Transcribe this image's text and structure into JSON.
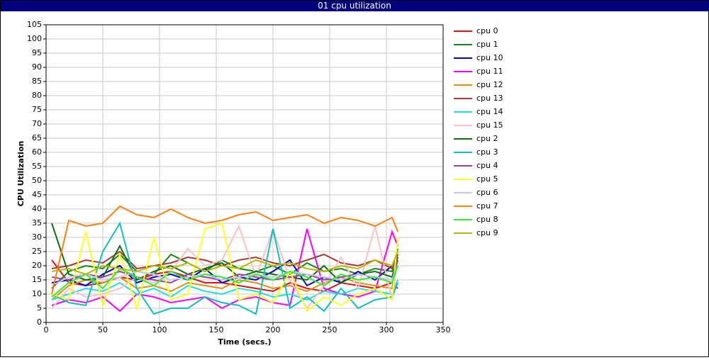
{
  "chart_data": {
    "type": "line",
    "title": "01 cpu utilization",
    "x_label": "Time (secs.)",
    "y_label": "CPU Utilization",
    "x": [
      5,
      20,
      35,
      50,
      65,
      80,
      95,
      110,
      125,
      140,
      155,
      170,
      185,
      200,
      215,
      230,
      245,
      260,
      275,
      290,
      305,
      310
    ],
    "xlim": [
      0,
      350
    ],
    "xticks": [
      0,
      50,
      100,
      150,
      200,
      250,
      300,
      350
    ],
    "ylim": [
      0,
      105
    ],
    "yticks": [
      0,
      5,
      10,
      15,
      20,
      25,
      30,
      35,
      40,
      45,
      50,
      55,
      60,
      65,
      70,
      75,
      80,
      85,
      90,
      95,
      100,
      105
    ],
    "grid": true,
    "series": [
      {
        "name": "cpu 0",
        "color": "#e81010",
        "values": [
          22,
          14,
          13,
          14,
          16,
          15,
          17,
          18,
          16,
          14,
          14,
          13,
          12,
          11,
          14,
          12,
          11,
          14,
          13,
          12,
          14,
          12
        ]
      },
      {
        "name": "cpu 1",
        "color": "#108a10",
        "values": [
          12,
          18,
          20,
          19,
          24,
          18,
          17,
          24,
          21,
          18,
          22,
          19,
          18,
          20,
          17,
          21,
          18,
          19,
          17,
          19,
          18,
          26
        ]
      },
      {
        "name": "cpu 10",
        "color": "#0000d0",
        "values": [
          14,
          15,
          13,
          17,
          20,
          14,
          16,
          17,
          15,
          19,
          14,
          16,
          15,
          18,
          22,
          13,
          16,
          14,
          18,
          15,
          20,
          22
        ]
      },
      {
        "name": "cpu 11",
        "color": "#ff00ff",
        "values": [
          6,
          8,
          7,
          9,
          4,
          10,
          9,
          7,
          8,
          9,
          5,
          8,
          9,
          7,
          6,
          33,
          12,
          10,
          9,
          11,
          32,
          27
        ]
      },
      {
        "name": "cpu 12",
        "color": "#e09010",
        "values": [
          8,
          13,
          15,
          14,
          16,
          12,
          13,
          11,
          14,
          13,
          12,
          15,
          14,
          12,
          13,
          11,
          14,
          16,
          14,
          13,
          12,
          24
        ]
      },
      {
        "name": "cpu 13",
        "color": "#a83a3a",
        "values": [
          19,
          20,
          22,
          21,
          25,
          19,
          20,
          21,
          23,
          22,
          20,
          22,
          23,
          21,
          20,
          22,
          24,
          21,
          20,
          22,
          19,
          24
        ]
      },
      {
        "name": "cpu 14",
        "color": "#20e0e0",
        "values": [
          8,
          10,
          12,
          11,
          14,
          10,
          12,
          9,
          13,
          11,
          10,
          12,
          11,
          9,
          10,
          8,
          11,
          10,
          12,
          11,
          10,
          15
        ]
      },
      {
        "name": "cpu 15",
        "color": "#ffc0c8",
        "values": [
          5,
          12,
          9,
          10,
          12,
          16,
          14,
          18,
          26,
          20,
          22,
          34,
          16,
          33,
          15,
          5,
          13,
          23,
          12,
          34,
          8,
          22
        ]
      },
      {
        "name": "cpu 2",
        "color": "#107010",
        "values": [
          35,
          17,
          15,
          16,
          27,
          15,
          18,
          20,
          17,
          19,
          21,
          16,
          18,
          17,
          16,
          15,
          20,
          14,
          17,
          18,
          16,
          23
        ]
      },
      {
        "name": "cpu 3",
        "color": "#10c0c0",
        "values": [
          10,
          7,
          6,
          25,
          35,
          12,
          3,
          5,
          5,
          9,
          7,
          6,
          3,
          33,
          5,
          9,
          4,
          12,
          5,
          8,
          9,
          14
        ]
      },
      {
        "name": "cpu 4",
        "color": "#a040a0",
        "values": [
          16,
          15,
          17,
          16,
          18,
          16,
          15,
          14,
          17,
          16,
          15,
          17,
          16,
          15,
          16,
          17,
          15,
          16,
          17,
          16,
          15,
          22
        ]
      },
      {
        "name": "cpu 5",
        "color": "#ffff20",
        "values": [
          10,
          8,
          32,
          6,
          24,
          5,
          30,
          8,
          10,
          33,
          35,
          8,
          10,
          7,
          18,
          4,
          9,
          6,
          10,
          12,
          8,
          30
        ]
      },
      {
        "name": "cpu 6",
        "color": "#c8c8f8",
        "values": [
          13,
          16,
          17,
          15,
          16,
          18,
          17,
          15,
          16,
          17,
          15,
          16,
          17,
          16,
          18,
          17,
          16,
          15,
          17,
          16,
          15,
          20
        ]
      },
      {
        "name": "cpu 7",
        "color": "#ff8010",
        "values": [
          10,
          36,
          34,
          35,
          41,
          38,
          37,
          40,
          37,
          35,
          36,
          38,
          39,
          36,
          37,
          38,
          35,
          37,
          36,
          34,
          37,
          32
        ]
      },
      {
        "name": "cpu 8",
        "color": "#30f030",
        "values": [
          9,
          14,
          17,
          12,
          19,
          16,
          13,
          18,
          15,
          17,
          16,
          14,
          17,
          15,
          18,
          16,
          13,
          17,
          15,
          16,
          14,
          20
        ]
      },
      {
        "name": "cpu 9",
        "color": "#b8b800",
        "values": [
          18,
          19,
          17,
          20,
          19,
          18,
          20,
          19,
          21,
          18,
          20,
          19,
          22,
          20,
          21,
          19,
          18,
          20,
          19,
          22,
          20,
          25
        ]
      }
    ]
  }
}
